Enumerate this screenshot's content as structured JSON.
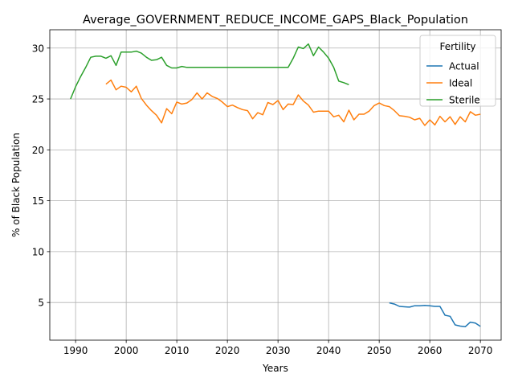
{
  "chart_data": {
    "type": "line",
    "title": "Average_GOVERNMENT_REDUCE_INCOME_GAPS_Black_Population",
    "xlabel": "Years",
    "ylabel": "% of Black Population",
    "xlim": [
      1984.9,
      2074.1
    ],
    "ylim": [
      1.3,
      31.8
    ],
    "xticks": [
      1990,
      2000,
      2010,
      2020,
      2030,
      2040,
      2050,
      2060,
      2070
    ],
    "yticks": [
      5,
      10,
      15,
      20,
      25,
      30
    ],
    "grid": true,
    "legend": {
      "title": "Fertility",
      "placement": "top-right"
    },
    "series": [
      {
        "name": "Actual",
        "color": "#1f77b4",
        "x": [
          2052,
          2053,
          2054,
          2055,
          2056,
          2057,
          2058,
          2059,
          2060,
          2061,
          2062,
          2063,
          2064,
          2065,
          2066,
          2067,
          2068,
          2069,
          2070
        ],
        "y": [
          4.97,
          4.85,
          4.62,
          4.58,
          4.55,
          4.68,
          4.68,
          4.72,
          4.68,
          4.62,
          4.62,
          3.75,
          3.65,
          2.8,
          2.68,
          2.62,
          3.07,
          2.98,
          2.65
        ]
      },
      {
        "name": "Ideal",
        "color": "#ff7f0e",
        "x": [
          1996,
          1997,
          1998,
          1999,
          2000,
          2001,
          2002,
          2003,
          2004,
          2005,
          2006,
          2007,
          2008,
          2009,
          2010,
          2011,
          2012,
          2013,
          2014,
          2015,
          2016,
          2017,
          2018,
          2019,
          2020,
          2021,
          2022,
          2023,
          2024,
          2025,
          2026,
          2027,
          2028,
          2029,
          2030,
          2031,
          2032,
          2033,
          2034,
          2035,
          2036,
          2037,
          2038,
          2039,
          2040,
          2041,
          2042,
          2043,
          2044,
          2045,
          2046,
          2047,
          2048,
          2049,
          2050,
          2051,
          2052,
          2053,
          2054,
          2055,
          2056,
          2057,
          2058,
          2059,
          2060,
          2061,
          2062,
          2063,
          2064,
          2065,
          2066,
          2067,
          2068,
          2069,
          2070
        ],
        "y": [
          26.45,
          26.85,
          25.9,
          26.25,
          26.15,
          25.7,
          26.25,
          25.05,
          24.4,
          23.85,
          23.4,
          22.65,
          24.05,
          23.55,
          24.7,
          24.5,
          24.6,
          24.95,
          25.6,
          25.0,
          25.6,
          25.25,
          25.05,
          24.7,
          24.25,
          24.4,
          24.15,
          23.95,
          23.85,
          23.05,
          23.65,
          23.45,
          24.65,
          24.45,
          24.85,
          23.95,
          24.5,
          24.45,
          25.4,
          24.8,
          24.4,
          23.7,
          23.8,
          23.8,
          23.8,
          23.25,
          23.4,
          22.75,
          23.9,
          22.95,
          23.5,
          23.5,
          23.8,
          24.35,
          24.6,
          24.35,
          24.25,
          23.85,
          23.35,
          23.3,
          23.2,
          22.95,
          23.1,
          22.4,
          22.95,
          22.45,
          23.3,
          22.75,
          23.25,
          22.5,
          23.25,
          22.75,
          23.75,
          23.4,
          23.5
        ]
      },
      {
        "name": "Sterile",
        "color": "#2ca02c",
        "x": [
          1989,
          1990,
          1991,
          1992,
          1993,
          1994,
          1995,
          1996,
          1997,
          1998,
          1999,
          2000,
          2001,
          2002,
          2003,
          2004,
          2005,
          2006,
          2007,
          2008,
          2009,
          2010,
          2011,
          2012,
          2013,
          2014,
          2015,
          2016,
          2017,
          2018,
          2019,
          2020,
          2021,
          2022,
          2023,
          2024,
          2025,
          2026,
          2027,
          2028,
          2029,
          2030,
          2031,
          2032,
          2033,
          2034,
          2035,
          2036,
          2037,
          2038,
          2039,
          2040,
          2041,
          2042,
          2043,
          2044
        ],
        "y": [
          25.0,
          26.2,
          27.2,
          28.1,
          29.1,
          29.2,
          29.2,
          29.0,
          29.25,
          28.3,
          29.6,
          29.6,
          29.6,
          29.7,
          29.5,
          29.1,
          28.8,
          28.85,
          29.1,
          28.3,
          28.05,
          28.05,
          28.2,
          28.1,
          28.1,
          28.1,
          28.1,
          28.1,
          28.1,
          28.1,
          28.1,
          28.1,
          28.1,
          28.1,
          28.1,
          28.1,
          28.1,
          28.1,
          28.1,
          28.1,
          28.1,
          28.1,
          28.1,
          28.1,
          29.0,
          30.1,
          29.95,
          30.4,
          29.25,
          30.1,
          29.6,
          29.0,
          28.1,
          26.75,
          26.6,
          26.4
        ]
      }
    ]
  }
}
